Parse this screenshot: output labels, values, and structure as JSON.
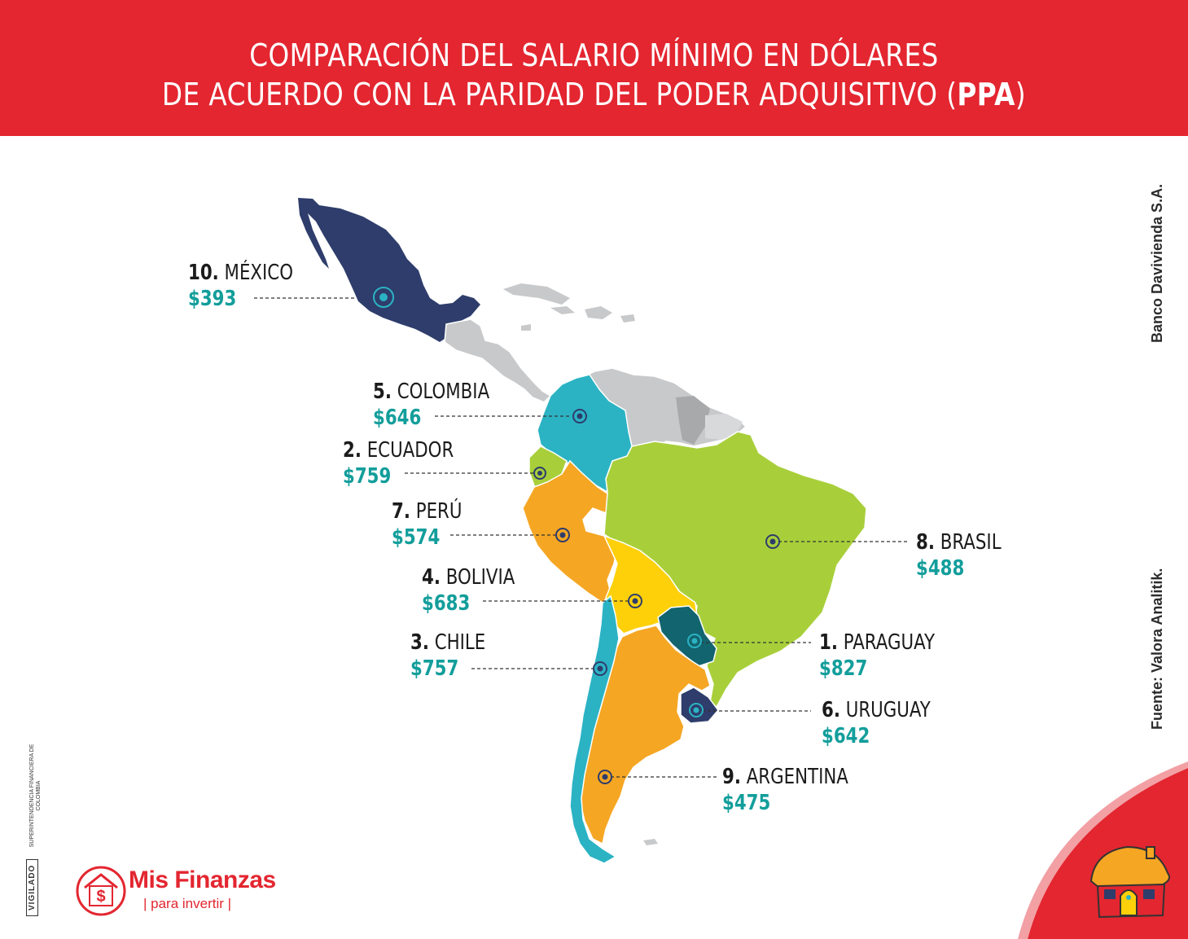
{
  "header": {
    "line1": "COMPARACIÓN DEL SALARIO MÍNIMO EN DÓLARES",
    "line2_pre": "DE ACUERDO CON LA PARIDAD DEL PODER ADQUISITIVO (",
    "line2_bold": "PPA",
    "line2_post": ")"
  },
  "countries": [
    {
      "rank": "10.",
      "name": "MÉXICO",
      "value": "$393",
      "color": "#2e3d6b"
    },
    {
      "rank": "5.",
      "name": "COLOMBIA",
      "value": "$646",
      "color": "#2bb3c4"
    },
    {
      "rank": "2.",
      "name": "ECUADOR",
      "value": "$759",
      "color": "#a8cf3a"
    },
    {
      "rank": "7.",
      "name": "PERÚ",
      "value": "$574",
      "color": "#f5a623"
    },
    {
      "rank": "4.",
      "name": "BOLIVIA",
      "value": "$683",
      "color": "#fdd00a"
    },
    {
      "rank": "3.",
      "name": "CHILE",
      "value": "$757",
      "color": "#2bb3c4"
    },
    {
      "rank": "8.",
      "name": "BRASIL",
      "value": "$488",
      "color": "#a8cf3a"
    },
    {
      "rank": "1.",
      "name": "PARAGUAY",
      "value": "$827",
      "color": "#12646e"
    },
    {
      "rank": "6.",
      "name": "URUGUAY",
      "value": "$642",
      "color": "#2e3d6b"
    },
    {
      "rank": "9.",
      "name": "ARGENTINA",
      "value": "$475",
      "color": "#f5a623"
    }
  ],
  "source_right_top": "Banco Davivienda S.A.",
  "source_right_bottom": "Fuente: Valora Analitik.",
  "vigilado": "VIGILADO",
  "superintendencia": "SUPERINTENDENCIA FINANCIERA DE COLOMBIA",
  "logo": {
    "title": "Mis Finanzas",
    "subtitle": "para invertir",
    "symbol": "$"
  },
  "colors": {
    "header_bg": "#e32630",
    "value_text": "#139e9b",
    "other_countries": "#c8c9cb"
  }
}
